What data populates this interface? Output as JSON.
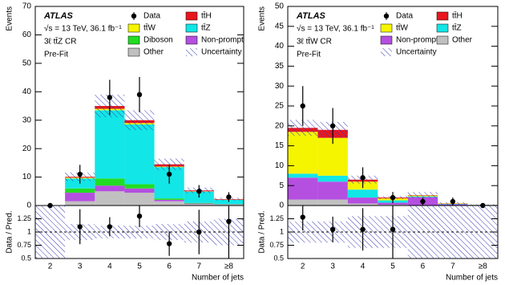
{
  "chart_data": [
    {
      "type": "stacked-histogram",
      "ylabel": "Events",
      "xlabel": "Number of jets",
      "annotations": [
        "ATLAS",
        "√s = 13 TeV, 36.1 fb⁻¹",
        "3ℓ tt̄Z CR",
        "Pre-Fit"
      ],
      "categories": [
        "2",
        "3",
        "4",
        "5",
        "6",
        "7",
        "≥8"
      ],
      "ylim": [
        0,
        70
      ],
      "yticks": [
        0,
        10,
        20,
        30,
        40,
        50,
        60,
        70
      ],
      "series": [
        {
          "name": "tt̄H",
          "color": "#e8171e",
          "values": [
            0,
            0.3,
            1,
            1,
            0.8,
            0.3,
            0.2
          ]
        },
        {
          "name": "tt̄W",
          "color": "#f5f500",
          "values": [
            0,
            0.3,
            0.5,
            0.5,
            0.2,
            0.1,
            0.05
          ]
        },
        {
          "name": "tt̄Z",
          "color": "#12e6e6",
          "values": [
            0,
            3.5,
            24,
            21,
            11,
            4,
            1.5
          ]
        },
        {
          "name": "Diboson",
          "color": "#22dd22",
          "values": [
            0,
            1.5,
            2.5,
            1.5,
            0.5,
            0.2,
            0.1
          ]
        },
        {
          "name": "Non-prompt",
          "color": "#b54fe0",
          "values": [
            0,
            3,
            2,
            1.5,
            0.5,
            0.2,
            0.1
          ]
        },
        {
          "name": "Other",
          "color": "#c0c0c0",
          "values": [
            0,
            1.5,
            5,
            4.5,
            1.5,
            0.5,
            0.3
          ]
        }
      ],
      "data": {
        "name": "Data",
        "values": [
          0,
          11,
          38,
          39,
          11,
          5,
          3
        ],
        "errors": [
          0,
          3.3,
          6.2,
          6.2,
          3.3,
          2.2,
          1.7
        ]
      },
      "uncertainty": {
        "name": "Uncertainty",
        "color": "#3b3bb5",
        "values": [
          0,
          1.5,
          4,
          3.5,
          2,
          1,
          0.5
        ]
      },
      "ratio": {
        "ylabel": "Data / Pred.",
        "ylim": [
          0.5,
          1.5
        ],
        "yticks": [
          0.5,
          0.75,
          1,
          1.25
        ],
        "reference": 1,
        "values": [
          null,
          1.1,
          1.1,
          1.3,
          0.78,
          1.0,
          1.2
        ],
        "errors": [
          null,
          0.33,
          0.18,
          0.21,
          0.23,
          0.42,
          0.75
        ],
        "uncertainty": [
          0.8,
          0.15,
          0.12,
          0.12,
          0.15,
          0.2,
          0.25
        ]
      }
    },
    {
      "type": "stacked-histogram",
      "ylabel": "Events",
      "xlabel": "Number of jets",
      "annotations": [
        "ATLAS",
        "√s = 13 TeV, 36.1 fb⁻¹",
        "3ℓ tt̄W CR",
        "Pre-Fit"
      ],
      "categories": [
        "2",
        "3",
        "4",
        "5",
        "6",
        "7",
        "≥8"
      ],
      "ylim": [
        0,
        50
      ],
      "yticks": [
        0,
        5,
        10,
        15,
        20,
        25,
        30,
        35,
        40,
        45,
        50
      ],
      "series": [
        {
          "name": "tt̄H",
          "color": "#e8171e",
          "values": [
            1,
            2,
            0.5,
            0.2,
            0.1,
            0.05,
            0.02
          ]
        },
        {
          "name": "tt̄W",
          "color": "#f5f500",
          "values": [
            10.5,
            9.5,
            2,
            0.5,
            0.2,
            0.1,
            0.03
          ]
        },
        {
          "name": "tt̄Z",
          "color": "#12e6e6",
          "values": [
            1,
            1.5,
            2,
            0.6,
            0.2,
            0.1,
            0.05
          ]
        },
        {
          "name": "Non-prompt",
          "color": "#b54fe0",
          "values": [
            5.5,
            4.5,
            1.5,
            0.5,
            2,
            0.2,
            0.05
          ]
        },
        {
          "name": "Other",
          "color": "#c0c0c0",
          "values": [
            1.5,
            1.5,
            0.5,
            0.2,
            0.1,
            0.1,
            0.05
          ]
        }
      ],
      "data": {
        "name": "Data",
        "values": [
          25,
          20,
          7,
          2,
          1,
          1,
          0
        ],
        "errors": [
          5,
          4.5,
          2.6,
          1.4,
          1,
          1,
          0
        ]
      },
      "uncertainty": {
        "name": "Uncertainty",
        "color": "#3b3bb5",
        "values": [
          2,
          2,
          1,
          0.4,
          0.8,
          0.3,
          0.1
        ]
      },
      "ratio": {
        "ylabel": "Data / Pred.",
        "ylim": [
          0.5,
          1.5
        ],
        "yticks": [
          0.5,
          0.75,
          1,
          1.25
        ],
        "reference": 1,
        "values": [
          1.28,
          1.05,
          1.05,
          1.05,
          null,
          null,
          null
        ],
        "errors": [
          0.25,
          0.24,
          0.4,
          0.7,
          null,
          null,
          null
        ],
        "uncertainty": [
          0.2,
          0.2,
          0.3,
          0.3,
          0.8,
          0.6,
          0.6
        ]
      }
    }
  ]
}
